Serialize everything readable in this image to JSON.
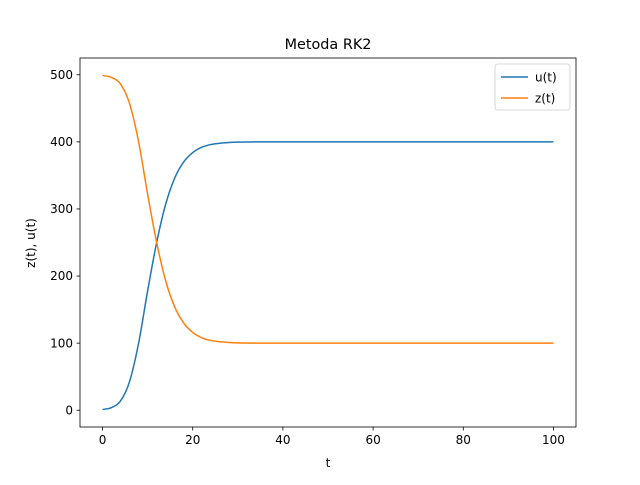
{
  "chart_data": {
    "type": "line",
    "title": "Metoda RK2",
    "xlabel": "t",
    "ylabel": "z(t), u(t)",
    "xlim": [
      -5,
      105
    ],
    "ylim": [
      -25,
      525
    ],
    "x_ticks": [
      0,
      20,
      40,
      60,
      80,
      100
    ],
    "y_ticks": [
      0,
      100,
      200,
      300,
      400,
      500
    ],
    "grid": false,
    "legend_position": "top-right",
    "series": [
      {
        "name": "u(t)",
        "color": "#1f77b4",
        "x": [
          0,
          2,
          4,
          6,
          8,
          10,
          12,
          14,
          16,
          18,
          20,
          22,
          24,
          26,
          28,
          30,
          35,
          40,
          50,
          60,
          70,
          80,
          90,
          100
        ],
        "values": [
          1,
          4,
          14,
          43,
          100,
          178,
          250,
          307,
          346,
          370,
          384,
          392,
          396,
          398,
          399,
          399.6,
          400,
          400,
          400,
          400,
          400,
          400,
          400,
          400
        ]
      },
      {
        "name": "z(t)",
        "color": "#ff7f0e",
        "x": [
          0,
          2,
          4,
          6,
          8,
          10,
          12,
          14,
          16,
          18,
          20,
          22,
          24,
          26,
          28,
          30,
          35,
          40,
          50,
          60,
          70,
          80,
          90,
          100
        ],
        "values": [
          499,
          496,
          486,
          457,
          400,
          322,
          250,
          193,
          154,
          130,
          116,
          108,
          104,
          102,
          101,
          100.4,
          100,
          100,
          100,
          100,
          100,
          100,
          100,
          100
        ]
      }
    ]
  }
}
